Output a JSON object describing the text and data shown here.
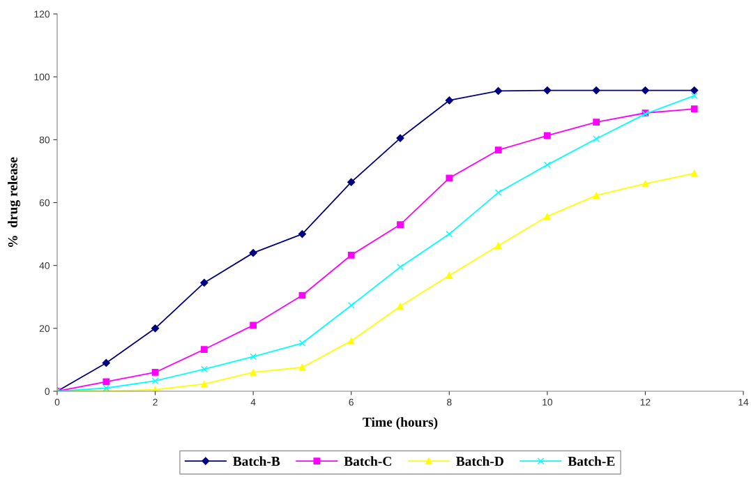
{
  "chart_data": {
    "type": "line",
    "xlabel": "Time (hours)",
    "ylabel": "%  drug release",
    "x": [
      0,
      1,
      2,
      3,
      4,
      5,
      6,
      7,
      8,
      9,
      10,
      11,
      12,
      13
    ],
    "xlim": [
      0,
      14
    ],
    "xticks": [
      0,
      2,
      4,
      6,
      8,
      10,
      12,
      14
    ],
    "ylim": [
      0,
      120
    ],
    "yticks": [
      0,
      20,
      40,
      60,
      80,
      100,
      120
    ],
    "grid": false,
    "legend": "bottom",
    "line_style": "solid",
    "series": [
      {
        "name": "Batch-B",
        "color": "#000080",
        "marker": "diamond",
        "values": [
          0,
          9,
          20,
          34.5,
          44,
          50,
          66.5,
          80.5,
          92.5,
          95.5,
          95.7,
          95.7,
          95.7,
          95.7
        ]
      },
      {
        "name": "Batch-C",
        "color": "#ff00ff",
        "marker": "square",
        "values": [
          0,
          3,
          6,
          13.3,
          21,
          30.5,
          43.3,
          53,
          67.8,
          76.7,
          81.3,
          85.6,
          88.5,
          89.8
        ]
      },
      {
        "name": "Batch-D",
        "color": "#ffff00",
        "marker": "triangle",
        "values": [
          0,
          0,
          0.5,
          2.3,
          6,
          7.6,
          16,
          27,
          36.8,
          46.3,
          55.6,
          62.3,
          66,
          69.3
        ]
      },
      {
        "name": "Batch-E",
        "color": "#00ffff",
        "marker": "cross",
        "values": [
          0,
          1,
          3.3,
          7,
          11,
          15.3,
          27.3,
          39.5,
          50,
          63.2,
          72,
          80.3,
          88.2,
          94
        ]
      }
    ]
  }
}
